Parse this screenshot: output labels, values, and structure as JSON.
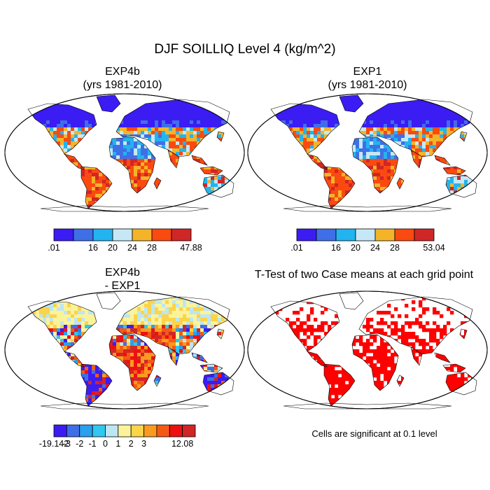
{
  "title": "DJF SOILLIQ Level 4 (kg/m^2)",
  "panels": {
    "exp4b": {
      "line1": "EXP4b",
      "line2": "(yrs 1981-2010)"
    },
    "exp1": {
      "line1": "EXP1",
      "line2": "(yrs 1981-2010)"
    },
    "diff": {
      "line1": "EXP4b",
      "line2": "- EXP1"
    },
    "ttest": {
      "title": "T-Test of two Case means at each grid point",
      "note": "Cells are significant at 0.1 level"
    }
  },
  "colors": {
    "levels_main": [
      "#3b1cf2",
      "#3f6fe6",
      "#22b4f0",
      "#c6e8f6",
      "#f4b42a",
      "#fa4a10",
      "#d12626"
    ],
    "levels_diff": [
      "#3b1cf2",
      "#3f6fe6",
      "#2aa0ee",
      "#32c6f2",
      "#bce6f4",
      "#fbf39a",
      "#fbd44a",
      "#fa9a20",
      "#f55a14",
      "#ee1010",
      "#d12626"
    ],
    "significant": "#ff0000"
  },
  "chart_data": [
    {
      "type": "heatmap",
      "title": "EXP4b (yrs 1981-2010)",
      "projection": "Robinson",
      "colorbar": {
        "labels": [
          ".01",
          "",
          "16",
          "20",
          "24",
          "28",
          "",
          "47.88"
        ]
      }
    },
    {
      "type": "heatmap",
      "title": "EXP1 (yrs 1981-2010)",
      "projection": "Robinson",
      "colorbar": {
        "labels": [
          ".01",
          "",
          "16",
          "20",
          "24",
          "28",
          "",
          "53.04"
        ]
      }
    },
    {
      "type": "heatmap",
      "title": "EXP4b - EXP1",
      "projection": "Robinson",
      "colorbar": {
        "labels": [
          "-19.142",
          "-3",
          "-2",
          "-1",
          "0",
          "1",
          "2",
          "3",
          "",
          "",
          "12.08"
        ]
      }
    },
    {
      "type": "heatmap",
      "title": "T-Test of two Case means at each grid point",
      "projection": "Robinson",
      "significance_level": 0.1
    }
  ]
}
